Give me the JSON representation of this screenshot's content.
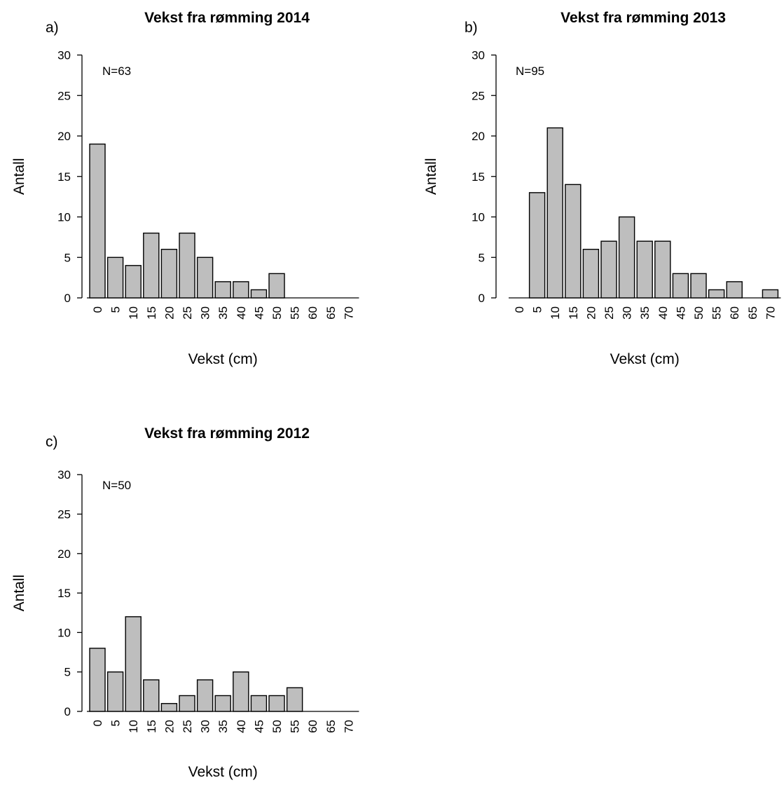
{
  "chart_data": [
    {
      "type": "bar",
      "panel_label": "a)",
      "title": "Vekst fra rømming 2014",
      "n_label": "N=63",
      "xlabel": "Vekst (cm)",
      "ylabel": "Antall",
      "categories": [
        "0",
        "5",
        "10",
        "15",
        "20",
        "25",
        "30",
        "35",
        "40",
        "45",
        "50",
        "55",
        "60",
        "65",
        "70"
      ],
      "values": [
        19,
        5,
        4,
        8,
        6,
        8,
        5,
        2,
        2,
        1,
        3,
        0,
        0,
        0,
        0
      ],
      "y_ticks": [
        "0",
        "5",
        "10",
        "15",
        "20",
        "25",
        "30"
      ],
      "ylim": [
        0,
        30
      ],
      "grid": false
    },
    {
      "type": "bar",
      "panel_label": "b)",
      "title": "Vekst fra rømming 2013",
      "n_label": "N=95",
      "xlabel": "Vekst (cm)",
      "ylabel": "Antall",
      "categories": [
        "0",
        "5",
        "10",
        "15",
        "20",
        "25",
        "30",
        "35",
        "40",
        "45",
        "50",
        "55",
        "60",
        "65",
        "70"
      ],
      "values": [
        0,
        13,
        21,
        14,
        6,
        7,
        10,
        7,
        7,
        3,
        3,
        1,
        2,
        0,
        1
      ],
      "y_ticks": [
        "0",
        "5",
        "10",
        "15",
        "20",
        "25",
        "30"
      ],
      "ylim": [
        0,
        30
      ],
      "grid": false
    },
    {
      "type": "bar",
      "panel_label": "c)",
      "title": "Vekst fra rømming 2012",
      "n_label": "N=50",
      "xlabel": "Vekst (cm)",
      "ylabel": "Antall",
      "categories": [
        "0",
        "5",
        "10",
        "15",
        "20",
        "25",
        "30",
        "35",
        "40",
        "45",
        "50",
        "55",
        "60",
        "65",
        "70"
      ],
      "values": [
        8,
        5,
        12,
        4,
        1,
        2,
        4,
        2,
        5,
        2,
        2,
        3,
        0,
        0,
        0
      ],
      "y_ticks": [
        "0",
        "5",
        "10",
        "15",
        "20",
        "25",
        "30"
      ],
      "ylim": [
        0,
        30
      ],
      "grid": false
    }
  ]
}
